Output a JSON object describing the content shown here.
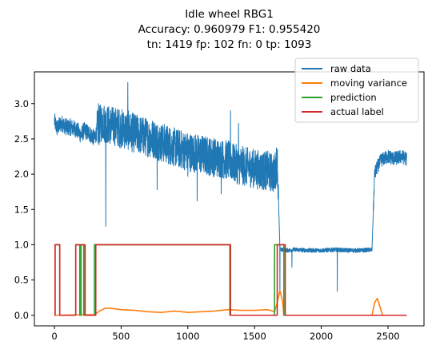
{
  "chart_data": {
    "type": "line",
    "title_lines": [
      "Idle wheel RBG1",
      "Accuracy: 0.960979 F1: 0.955420",
      "tn: 1419 fp: 102 fn:  0 tp: 1093"
    ],
    "xlabel": "",
    "ylabel": "",
    "xlim": [
      -150,
      2770
    ],
    "ylim": [
      -0.15,
      3.45
    ],
    "xticks": [
      0,
      500,
      1000,
      1500,
      2000,
      2500
    ],
    "yticks": [
      0.0,
      0.5,
      1.0,
      1.5,
      2.0,
      2.5,
      3.0
    ],
    "ytick_labels": [
      "0.0",
      "0.5",
      "1.0",
      "1.5",
      "2.0",
      "2.5",
      "3.0"
    ],
    "grid": false,
    "legend_position": "top-right",
    "series": [
      {
        "name": "raw data",
        "color": "#1f77b4",
        "description_points": [
          [
            0,
            2.75
          ],
          [
            20,
            2.65
          ],
          [
            40,
            2.7
          ],
          [
            60,
            2.72
          ],
          [
            80,
            2.68
          ],
          [
            100,
            2.66
          ],
          [
            120,
            2.67
          ],
          [
            140,
            2.65
          ],
          [
            160,
            2.64
          ],
          [
            180,
            2.6
          ],
          [
            200,
            2.55
          ],
          [
            220,
            2.62
          ],
          [
            240,
            2.6
          ],
          [
            260,
            2.58
          ],
          [
            280,
            2.55
          ],
          [
            300,
            2.5
          ],
          [
            320,
            2.62
          ],
          [
            340,
            2.7
          ],
          [
            360,
            2.75
          ],
          [
            380,
            2.72
          ],
          [
            400,
            2.7
          ],
          [
            450,
            2.68
          ],
          [
            500,
            2.65
          ],
          [
            550,
            2.62
          ],
          [
            600,
            2.58
          ],
          [
            650,
            2.55
          ],
          [
            700,
            2.52
          ],
          [
            750,
            2.5
          ],
          [
            800,
            2.45
          ],
          [
            850,
            2.42
          ],
          [
            900,
            2.38
          ],
          [
            950,
            2.35
          ],
          [
            1000,
            2.32
          ],
          [
            1050,
            2.3
          ],
          [
            1100,
            2.28
          ],
          [
            1150,
            2.26
          ],
          [
            1200,
            2.24
          ],
          [
            1250,
            2.22
          ],
          [
            1300,
            2.2
          ],
          [
            1350,
            2.15
          ],
          [
            1400,
            2.12
          ],
          [
            1450,
            2.1
          ],
          [
            1500,
            2.08
          ],
          [
            1550,
            2.05
          ],
          [
            1600,
            2.05
          ],
          [
            1650,
            2.0
          ],
          [
            1670,
            2.2
          ],
          [
            1680,
            1.6
          ],
          [
            1690,
            0.95
          ],
          [
            1700,
            0.93
          ],
          [
            1750,
            0.92
          ],
          [
            1800,
            0.93
          ],
          [
            1900,
            0.92
          ],
          [
            2000,
            0.92
          ],
          [
            2100,
            0.93
          ],
          [
            2200,
            0.92
          ],
          [
            2300,
            0.92
          ],
          [
            2380,
            0.93
          ],
          [
            2400,
            2.0
          ],
          [
            2420,
            2.1
          ],
          [
            2450,
            2.2
          ],
          [
            2500,
            2.25
          ],
          [
            2550,
            2.22
          ],
          [
            2600,
            2.25
          ],
          [
            2640,
            2.22
          ]
        ],
        "spikes": [
          [
            330,
            3.0
          ],
          [
            385,
            1.26
          ],
          [
            550,
            3.3
          ],
          [
            770,
            1.78
          ],
          [
            1000,
            1.97
          ],
          [
            1070,
            1.62
          ],
          [
            1250,
            1.72
          ],
          [
            1320,
            2.9
          ],
          [
            1380,
            2.72
          ],
          [
            1690,
            0.3
          ],
          [
            1780,
            0.68
          ],
          [
            2120,
            0.34
          ]
        ]
      },
      {
        "name": "moving variance",
        "color": "#ff7f0e",
        "points": [
          [
            0,
            0.0
          ],
          [
            300,
            0.01
          ],
          [
            340,
            0.06
          ],
          [
            380,
            0.1
          ],
          [
            420,
            0.1
          ],
          [
            500,
            0.08
          ],
          [
            600,
            0.07
          ],
          [
            700,
            0.05
          ],
          [
            800,
            0.04
          ],
          [
            900,
            0.06
          ],
          [
            1000,
            0.04
          ],
          [
            1100,
            0.05
          ],
          [
            1200,
            0.06
          ],
          [
            1300,
            0.08
          ],
          [
            1400,
            0.07
          ],
          [
            1500,
            0.07
          ],
          [
            1600,
            0.08
          ],
          [
            1650,
            0.05
          ],
          [
            1670,
            0.18
          ],
          [
            1690,
            0.35
          ],
          [
            1710,
            0.2
          ],
          [
            1720,
            0.0
          ],
          [
            2000,
            0.0
          ],
          [
            2380,
            0.0
          ],
          [
            2400,
            0.18
          ],
          [
            2420,
            0.24
          ],
          [
            2440,
            0.12
          ],
          [
            2460,
            0.0
          ],
          [
            2640,
            0.0
          ]
        ]
      },
      {
        "name": "prediction",
        "color": "#2ca02c",
        "points": [
          [
            0,
            0
          ],
          [
            5,
            0
          ],
          [
            5,
            1
          ],
          [
            40,
            1
          ],
          [
            40,
            0
          ],
          [
            160,
            0
          ],
          [
            160,
            1
          ],
          [
            190,
            1
          ],
          [
            190,
            0
          ],
          [
            200,
            0
          ],
          [
            200,
            1
          ],
          [
            220,
            1
          ],
          [
            220,
            0
          ],
          [
            300,
            0
          ],
          [
            300,
            1
          ],
          [
            1315,
            1
          ],
          [
            1315,
            0
          ],
          [
            1650,
            0
          ],
          [
            1650,
            1
          ],
          [
            1720,
            1
          ],
          [
            1720,
            0
          ],
          [
            2640,
            0
          ]
        ]
      },
      {
        "name": "actual label",
        "color": "#d62728",
        "points": [
          [
            0,
            0
          ],
          [
            5,
            0
          ],
          [
            5,
            1
          ],
          [
            40,
            1
          ],
          [
            40,
            0
          ],
          [
            160,
            0
          ],
          [
            160,
            1
          ],
          [
            230,
            1
          ],
          [
            230,
            0
          ],
          [
            310,
            0
          ],
          [
            310,
            1
          ],
          [
            1320,
            1
          ],
          [
            1320,
            0
          ],
          [
            1670,
            0
          ],
          [
            1670,
            1
          ],
          [
            1730,
            1
          ],
          [
            1730,
            0
          ],
          [
            2640,
            0
          ]
        ]
      }
    ]
  }
}
